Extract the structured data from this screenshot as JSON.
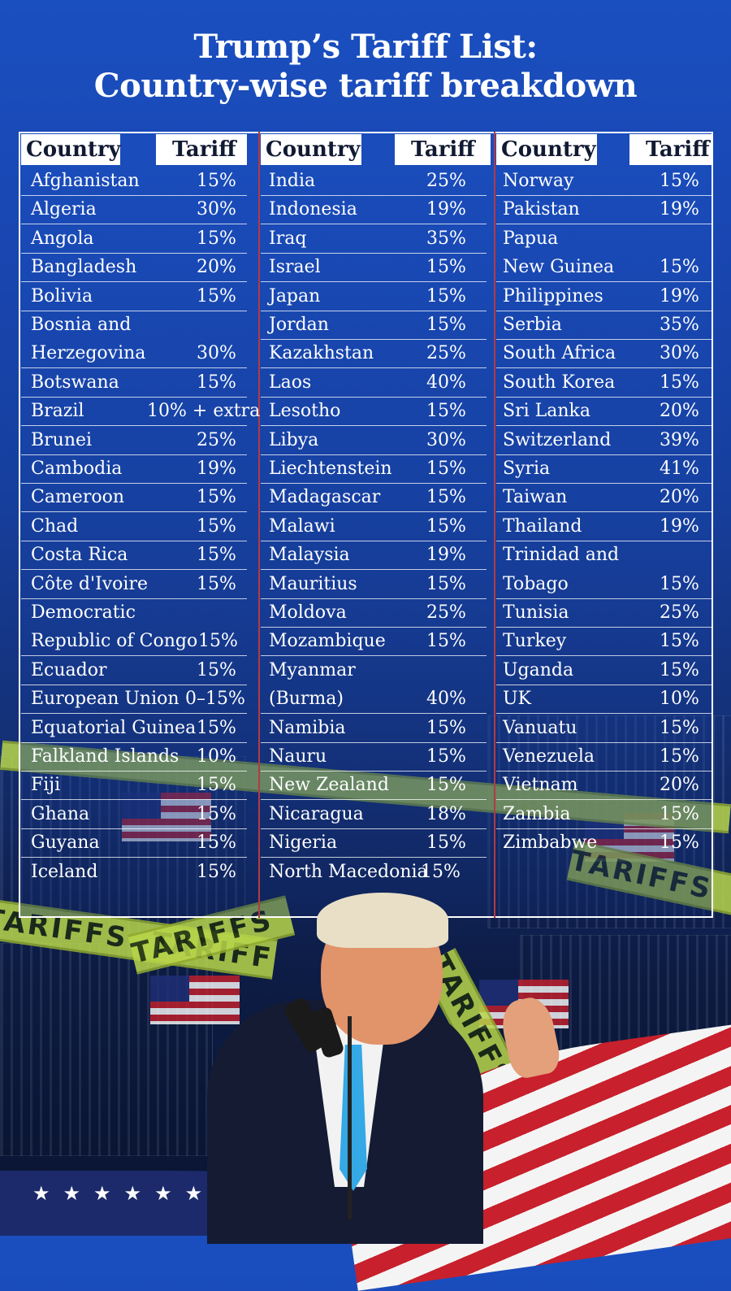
{
  "header": {
    "title_line1": "Trump’s Tariff List:",
    "title_line2": "Country-wise tariff breakdown"
  },
  "table": {
    "column_headers": {
      "country": "Country",
      "tariff": "Tariff"
    },
    "columns": [
      [
        {
          "country": "Afghanistan",
          "tariff": "15%"
        },
        {
          "country": "Algeria",
          "tariff": "30%"
        },
        {
          "country": "Angola",
          "tariff": "15%"
        },
        {
          "country": "Bangladesh",
          "tariff": "20%"
        },
        {
          "country": "Bolivia",
          "tariff": "15%"
        },
        {
          "country": "Bosnia and",
          "country_line2": "Herzegovina",
          "tariff": "30%"
        },
        {
          "country": "Botswana",
          "tariff": "15%"
        },
        {
          "country": "Brazil",
          "tariff": "10% + extra"
        },
        {
          "country": "Brunei",
          "tariff": "25%"
        },
        {
          "country": "Cambodia",
          "tariff": "19%"
        },
        {
          "country": "Cameroon",
          "tariff": "15%"
        },
        {
          "country": "Chad",
          "tariff": "15%"
        },
        {
          "country": "Costa Rica",
          "tariff": "15%"
        },
        {
          "country": "Côte d'Ivoire",
          "tariff": "15%"
        },
        {
          "country": "Democratic",
          "country_line2": "Republic of Congo",
          "tariff": "15%"
        },
        {
          "country": "Ecuador",
          "tariff": "15%"
        },
        {
          "country": "European Union",
          "tariff": "0–15%"
        },
        {
          "country": "Equatorial Guinea",
          "tariff": "15%"
        },
        {
          "country": "Falkland Islands",
          "tariff": "10%"
        },
        {
          "country": "Fiji",
          "tariff": "15%"
        },
        {
          "country": "Ghana",
          "tariff": "15%"
        },
        {
          "country": "Guyana",
          "tariff": "15%"
        },
        {
          "country": "Iceland",
          "tariff": "15%"
        }
      ],
      [
        {
          "country": "India",
          "tariff": "25%"
        },
        {
          "country": "Indonesia",
          "tariff": "19%"
        },
        {
          "country": "Iraq",
          "tariff": "35%"
        },
        {
          "country": "Israel",
          "tariff": "15%"
        },
        {
          "country": "Japan",
          "tariff": "15%"
        },
        {
          "country": "Jordan",
          "tariff": "15%"
        },
        {
          "country": "Kazakhstan",
          "tariff": "25%"
        },
        {
          "country": "Laos",
          "tariff": "40%"
        },
        {
          "country": "Lesotho",
          "tariff": "15%"
        },
        {
          "country": "Libya",
          "tariff": "30%"
        },
        {
          "country": "Liechtenstein",
          "tariff": "15%"
        },
        {
          "country": "Madagascar",
          "tariff": "15%"
        },
        {
          "country": "Malawi",
          "tariff": "15%"
        },
        {
          "country": "Malaysia",
          "tariff": "19%"
        },
        {
          "country": "Mauritius",
          "tariff": "15%"
        },
        {
          "country": "Moldova",
          "tariff": "25%"
        },
        {
          "country": "Mozambique",
          "tariff": "15%"
        },
        {
          "country": "Myanmar",
          "country_line2": "(Burma)",
          "tariff": "40%"
        },
        {
          "country": "Namibia",
          "tariff": "15%"
        },
        {
          "country": "Nauru",
          "tariff": "15%"
        },
        {
          "country": "New Zealand",
          "tariff": "15%"
        },
        {
          "country": "Nicaragua",
          "tariff": "18%"
        },
        {
          "country": "Nigeria",
          "tariff": "15%"
        },
        {
          "country": "North Macedonia",
          "tariff": "15%"
        }
      ],
      [
        {
          "country": "Norway",
          "tariff": "15%"
        },
        {
          "country": "Pakistan",
          "tariff": "19%"
        },
        {
          "country": "Papua",
          "country_line2": "New Guinea",
          "tariff": "15%"
        },
        {
          "country": "Philippines",
          "tariff": "19%"
        },
        {
          "country": "Serbia",
          "tariff": "35%"
        },
        {
          "country": "South Africa",
          "tariff": "30%"
        },
        {
          "country": "South Korea",
          "tariff": "15%"
        },
        {
          "country": "Sri Lanka",
          "tariff": "20%"
        },
        {
          "country": "Switzerland",
          "tariff": "39%"
        },
        {
          "country": "Syria",
          "tariff": "41%"
        },
        {
          "country": "Taiwan",
          "tariff": "20%"
        },
        {
          "country": "Thailand",
          "tariff": "19%"
        },
        {
          "country": "Trinidad and",
          "country_line2": "Tobago",
          "tariff": "15%"
        },
        {
          "country": "Tunisia",
          "tariff": "25%"
        },
        {
          "country": "Turkey",
          "tariff": "15%"
        },
        {
          "country": "Uganda",
          "tariff": "15%"
        },
        {
          "country": "UK",
          "tariff": "10%"
        },
        {
          "country": "Vanuatu",
          "tariff": "15%"
        },
        {
          "country": "Venezuela",
          "tariff": "15%"
        },
        {
          "country": "Vietnam",
          "tariff": "20%"
        },
        {
          "country": "Zambia",
          "tariff": "15%"
        },
        {
          "country": "Zimbabwe",
          "tariff": "15%"
        }
      ]
    ]
  },
  "background": {
    "tape_text": "TARIFFS",
    "colors": {
      "background_top": "#1a4fc0",
      "background_bottom": "#0a1431",
      "header_cell": "#ffffff",
      "column_divider": "#b33a44",
      "tape": "#b8d64a",
      "flag_red": "#c8202c",
      "flag_blue": "#1c2a6b",
      "tie": "#35a8e6"
    }
  },
  "icons": [
    "american-flag-icon",
    "microphone-icon",
    "tariffs-tape-icon",
    "speaker-photo"
  ]
}
